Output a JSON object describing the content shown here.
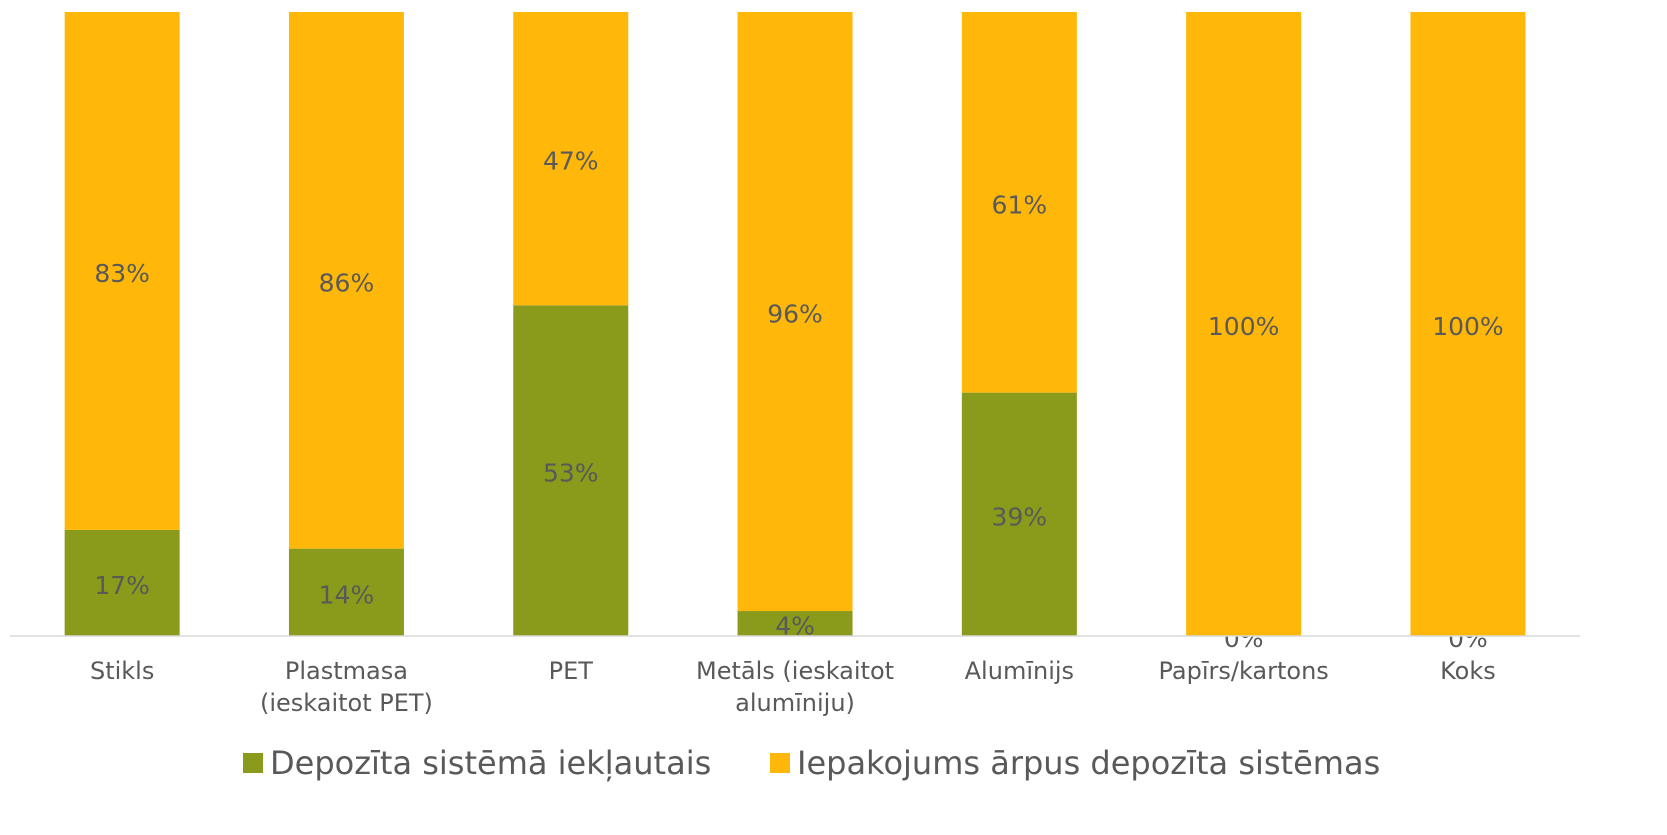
{
  "chart_data": {
    "type": "stacked_bar",
    "categories": [
      "Stikls",
      "Plastmasa (ieskaitot PET)",
      "PET",
      "Metāls (ieskaitot alumīniju)",
      "Alumīnijs",
      "Papīrs/kartons",
      "Koks"
    ],
    "series": [
      {
        "name": "Depozīta sistēmā iekļautais",
        "color": "#8a9a1b",
        "values": [
          17,
          14,
          53,
          4,
          39,
          0,
          0
        ],
        "value_labels": [
          "17%",
          "14%",
          "53%",
          "4%",
          "39%",
          "0%",
          "0%"
        ]
      },
      {
        "name": "Iepakojums ārpus depozīta sistēmas",
        "color": "#ffb80a",
        "values": [
          83,
          86,
          47,
          96,
          61,
          100,
          100
        ],
        "value_labels": [
          "83%",
          "86%",
          "47%",
          "96%",
          "61%",
          "100%",
          "100%"
        ]
      }
    ],
    "ylim": [
      0,
      100
    ],
    "legend": "bottom"
  }
}
